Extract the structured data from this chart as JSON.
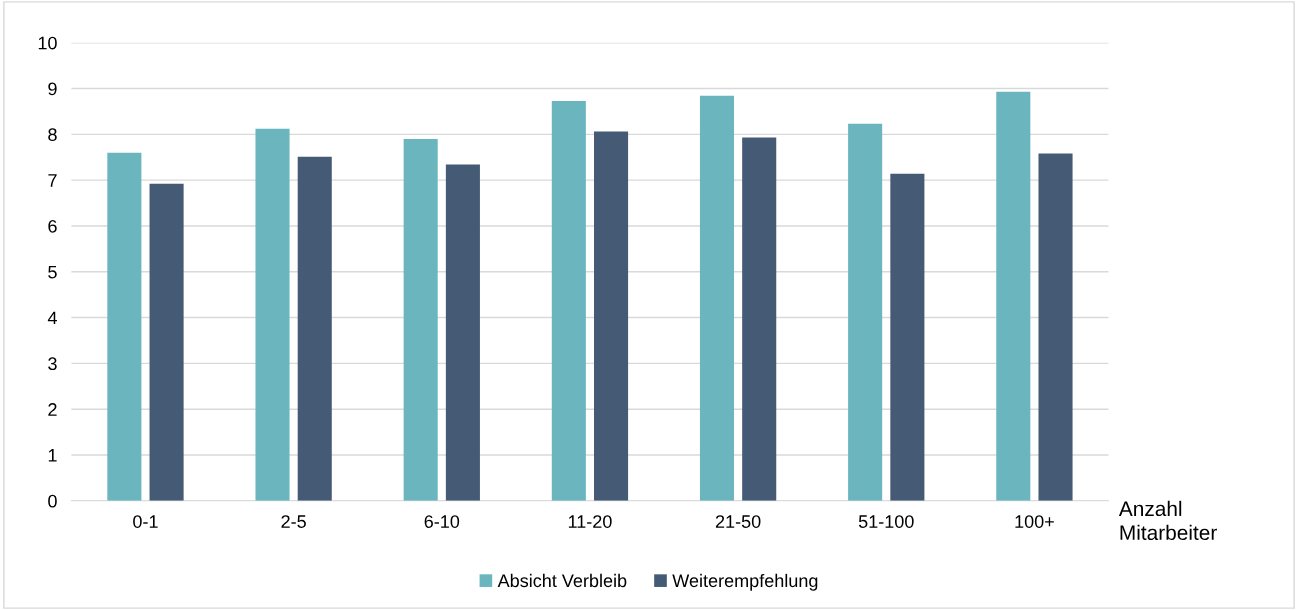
{
  "chart_data": {
    "type": "bar",
    "categories": [
      "0-1",
      "2-5",
      "6-10",
      "11-20",
      "21-50",
      "51-100",
      "100+"
    ],
    "series": [
      {
        "name": "Absicht Verbleib",
        "color": "#6bb5bf",
        "values": [
          7.6,
          8.12,
          7.9,
          8.73,
          8.84,
          8.23,
          8.93
        ]
      },
      {
        "name": "Weiterempfehlung",
        "color": "#455a74",
        "values": [
          6.92,
          7.51,
          7.34,
          8.06,
          7.93,
          7.14,
          7.58
        ]
      }
    ],
    "xlabel": "Anzahl\nMitarbeiter",
    "ylim": [
      0,
      10
    ],
    "yticks": [
      0,
      1,
      2,
      3,
      4,
      5,
      6,
      7,
      8,
      9,
      10
    ],
    "grid": "y",
    "legend": "bottom"
  }
}
